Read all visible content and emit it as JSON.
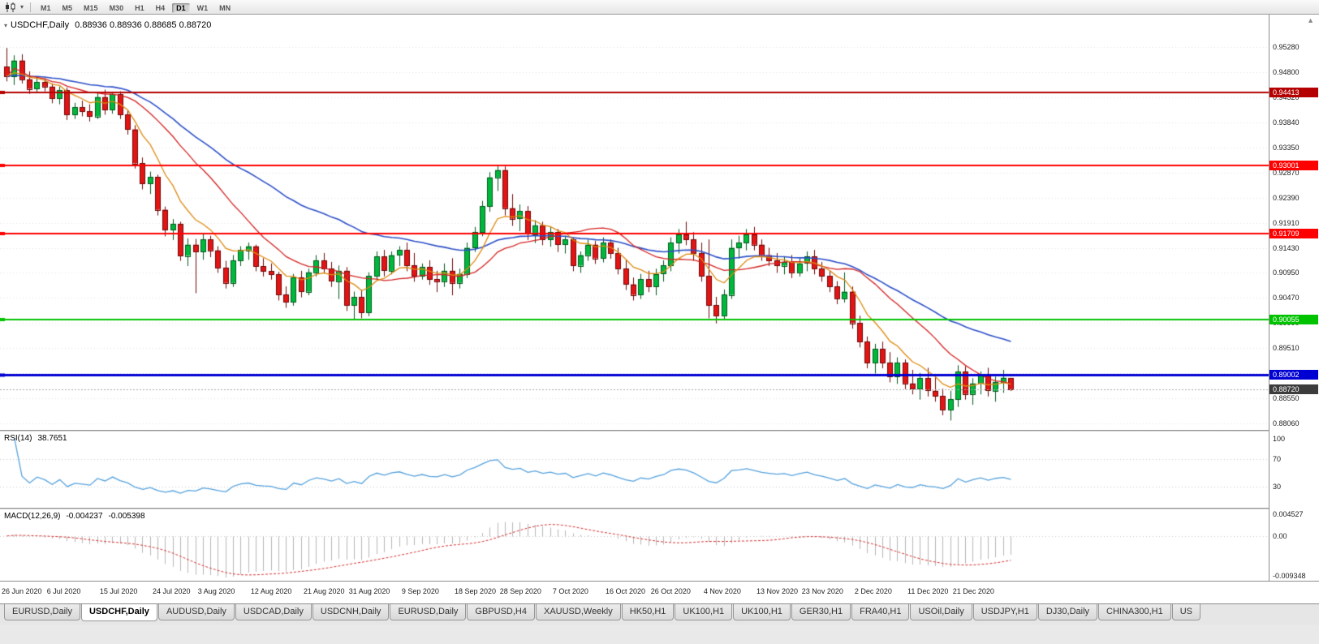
{
  "icons": {
    "dropdown": "▾",
    "scroll_marker": "▲"
  },
  "toolbar": {
    "timeframes": [
      "M1",
      "M5",
      "M15",
      "M30",
      "H1",
      "H4",
      "D1",
      "W1",
      "MN"
    ],
    "active_timeframe": "D1"
  },
  "chart": {
    "symbol_label": "USDCHF,Daily",
    "ohlc": "0.88936 0.88936 0.88685 0.88720"
  },
  "rsi": {
    "label": "RSI(14)",
    "value": "38.7651",
    "levels": [
      100,
      70,
      30
    ],
    "color": "#55a1dc"
  },
  "macd": {
    "label": "MACD(12,26,9)",
    "macd_value": "-0.004237",
    "signal_value": "-0.005398",
    "axis_labels": [
      "0.004527",
      "0.00",
      "-0.009348"
    ],
    "ylim": [
      -0.009348,
      0.004527
    ],
    "hist_color": "#b6b6b6",
    "signal_color": "#d23030"
  },
  "tabs": {
    "items": [
      "EURUSD,Daily",
      "USDCHF,Daily",
      "AUDUSD,Daily",
      "USDCAD,Daily",
      "USDCNH,Daily",
      "EURUSD,Daily",
      "GBPUSD,H4",
      "XAUUSD,Weekly",
      "HK50,H1",
      "UK100,H1",
      "UK100,H1",
      "GER30,H1",
      "FRA40,H1",
      "USOil,Daily",
      "USDJPY,H1",
      "DJ30,Daily",
      "CHINA300,H1",
      "US"
    ],
    "active_index": 1
  },
  "chart_data": {
    "type": "candlestick",
    "symbol": "USDCHF",
    "timeframe": "Daily",
    "ylim": [
      0.8794,
      0.959
    ],
    "y_ticks": [
      "0.95280",
      "0.94800",
      "0.94320",
      "0.93840",
      "0.93350",
      "0.92870",
      "0.92390",
      "0.91910",
      "0.91430",
      "0.90950",
      "0.90470",
      "0.89990",
      "0.89510",
      "0.89030",
      "0.88550",
      "0.88060"
    ],
    "x_tick_labels": [
      {
        "i": 0,
        "t": "26 Jun 2020"
      },
      {
        "i": 6,
        "t": "6 Jul 2020"
      },
      {
        "i": 13,
        "t": "15 Jul 2020"
      },
      {
        "i": 20,
        "t": "24 Jul 2020"
      },
      {
        "i": 26,
        "t": "3 Aug 2020"
      },
      {
        "i": 33,
        "t": "12 Aug 2020"
      },
      {
        "i": 40,
        "t": "21 Aug 2020"
      },
      {
        "i": 46,
        "t": "31 Aug 2020"
      },
      {
        "i": 53,
        "t": "9 Sep 2020"
      },
      {
        "i": 60,
        "t": "18 Sep 2020"
      },
      {
        "i": 66,
        "t": "28 Sep 2020"
      },
      {
        "i": 73,
        "t": "7 Oct 2020"
      },
      {
        "i": 80,
        "t": "16 Oct 2020"
      },
      {
        "i": 86,
        "t": "26 Oct 2020"
      },
      {
        "i": 93,
        "t": "4 Nov 2020"
      },
      {
        "i": 100,
        "t": "13 Nov 2020"
      },
      {
        "i": 106,
        "t": "23 Nov 2020"
      },
      {
        "i": 113,
        "t": "2 Dec 2020"
      },
      {
        "i": 120,
        "t": "11 Dec 2020"
      },
      {
        "i": 126,
        "t": "21 Dec 2020"
      }
    ],
    "colors": {
      "up": "#00b93c",
      "up_edge": "#00591d",
      "down": "#e41414",
      "down_edge": "#6e0808",
      "grid": "#e3e3e3",
      "bid_line": "#a8a8a8"
    },
    "moving_averages": [
      {
        "name": "ma-slow",
        "period": 40,
        "method": "ema",
        "color": "#2c4fc8"
      },
      {
        "name": "ma-mid",
        "period": 18,
        "method": "sma",
        "color": "#d42222"
      },
      {
        "name": "ma-fast",
        "period": 8,
        "method": "ema",
        "color": "#dd8a10"
      }
    ],
    "hlines": [
      {
        "price": 0.94413,
        "label": "0.94413",
        "color": "#b40000",
        "width": 2
      },
      {
        "price": 0.93001,
        "label": "0.93001",
        "color": "#ff0000",
        "width": 2
      },
      {
        "price": 0.91709,
        "label": "0.91709",
        "color": "#ff0000",
        "width": 2
      },
      {
        "price": 0.90055,
        "label": "0.90055",
        "color": "#00c300",
        "width": 2
      },
      {
        "price": 0.89002,
        "label": "0.89002",
        "color": "#0000d2",
        "width": 3
      }
    ],
    "current_price": {
      "value": 0.8872,
      "label": "0.88720",
      "badge_color": "#3c3c3c"
    },
    "candles": [
      [
        0.949,
        0.9526,
        0.9462,
        0.9472
      ],
      [
        0.9472,
        0.9512,
        0.9455,
        0.9502
      ],
      [
        0.9502,
        0.9514,
        0.9458,
        0.9466
      ],
      [
        0.9466,
        0.9481,
        0.9438,
        0.9448
      ],
      [
        0.9448,
        0.9471,
        0.944,
        0.9461
      ],
      [
        0.9461,
        0.9468,
        0.9443,
        0.9452
      ],
      [
        0.9452,
        0.9458,
        0.942,
        0.943
      ],
      [
        0.943,
        0.9452,
        0.9418,
        0.9445
      ],
      [
        0.9445,
        0.945,
        0.9388,
        0.9398
      ],
      [
        0.9398,
        0.9421,
        0.939,
        0.9412
      ],
      [
        0.9412,
        0.9425,
        0.9395,
        0.9405
      ],
      [
        0.9405,
        0.9418,
        0.9385,
        0.9395
      ],
      [
        0.9395,
        0.944,
        0.939,
        0.9432
      ],
      [
        0.9432,
        0.9446,
        0.9398,
        0.9408
      ],
      [
        0.9408,
        0.9442,
        0.94,
        0.9437
      ],
      [
        0.9437,
        0.9443,
        0.939,
        0.9398
      ],
      [
        0.9398,
        0.9408,
        0.936,
        0.937
      ],
      [
        0.937,
        0.9378,
        0.9295,
        0.9305
      ],
      [
        0.9305,
        0.9316,
        0.9255,
        0.9266
      ],
      [
        0.9266,
        0.9289,
        0.9246,
        0.9279
      ],
      [
        0.9279,
        0.9283,
        0.9205,
        0.9216
      ],
      [
        0.9216,
        0.9222,
        0.9165,
        0.9178
      ],
      [
        0.9178,
        0.9198,
        0.9158,
        0.9189
      ],
      [
        0.9189,
        0.9193,
        0.9118,
        0.9128
      ],
      [
        0.9128,
        0.9161,
        0.9108,
        0.9149
      ],
      [
        0.9149,
        0.916,
        0.9056,
        0.9136
      ],
      [
        0.9136,
        0.9171,
        0.912,
        0.9159
      ],
      [
        0.9159,
        0.9166,
        0.9125,
        0.9138
      ],
      [
        0.9138,
        0.9146,
        0.9095,
        0.9105
      ],
      [
        0.9105,
        0.9118,
        0.9065,
        0.9076
      ],
      [
        0.9076,
        0.9129,
        0.9068,
        0.9119
      ],
      [
        0.9119,
        0.9146,
        0.9108,
        0.9139
      ],
      [
        0.9139,
        0.9153,
        0.912,
        0.9146
      ],
      [
        0.9146,
        0.9149,
        0.9098,
        0.9108
      ],
      [
        0.9108,
        0.9123,
        0.9088,
        0.9098
      ],
      [
        0.9098,
        0.9113,
        0.9082,
        0.9092
      ],
      [
        0.9092,
        0.9097,
        0.9042,
        0.9053
      ],
      [
        0.9053,
        0.9069,
        0.9028,
        0.9039
      ],
      [
        0.9039,
        0.9093,
        0.9032,
        0.9086
      ],
      [
        0.9086,
        0.9099,
        0.9048,
        0.9059
      ],
      [
        0.9059,
        0.9103,
        0.9052,
        0.9096
      ],
      [
        0.9096,
        0.9129,
        0.9088,
        0.9119
      ],
      [
        0.9119,
        0.9133,
        0.9095,
        0.9103
      ],
      [
        0.9103,
        0.9116,
        0.9068,
        0.9079
      ],
      [
        0.9079,
        0.9109,
        0.9045,
        0.9099
      ],
      [
        0.9099,
        0.9106,
        0.9022,
        0.9033
      ],
      [
        0.9033,
        0.9059,
        0.9006,
        0.9049
      ],
      [
        0.9049,
        0.9063,
        0.9008,
        0.9019
      ],
      [
        0.9019,
        0.9096,
        0.9012,
        0.9089
      ],
      [
        0.9089,
        0.9136,
        0.9082,
        0.9126
      ],
      [
        0.9126,
        0.9139,
        0.9088,
        0.9099
      ],
      [
        0.9099,
        0.9136,
        0.9092,
        0.9129
      ],
      [
        0.9129,
        0.9146,
        0.9108,
        0.9139
      ],
      [
        0.9139,
        0.9153,
        0.9098,
        0.9109
      ],
      [
        0.9109,
        0.9133,
        0.9078,
        0.9089
      ],
      [
        0.9089,
        0.9113,
        0.9082,
        0.9106
      ],
      [
        0.9106,
        0.9119,
        0.9072,
        0.9083
      ],
      [
        0.9083,
        0.9099,
        0.9058,
        0.9079
      ],
      [
        0.9079,
        0.9113,
        0.9068,
        0.9099
      ],
      [
        0.9099,
        0.9123,
        0.9052,
        0.9076
      ],
      [
        0.9076,
        0.9103,
        0.9065,
        0.9093
      ],
      [
        0.9093,
        0.9153,
        0.9085,
        0.9143
      ],
      [
        0.9143,
        0.9183,
        0.9135,
        0.9173
      ],
      [
        0.9173,
        0.9233,
        0.9165,
        0.9223
      ],
      [
        0.9223,
        0.9288,
        0.9212,
        0.9278
      ],
      [
        0.9278,
        0.9302,
        0.9252,
        0.9292
      ],
      [
        0.9292,
        0.9299,
        0.9205,
        0.9219
      ],
      [
        0.9219,
        0.9246,
        0.9185,
        0.9199
      ],
      [
        0.9199,
        0.9226,
        0.9175,
        0.9213
      ],
      [
        0.9213,
        0.9223,
        0.9158,
        0.9169
      ],
      [
        0.9169,
        0.9196,
        0.9152,
        0.9186
      ],
      [
        0.9186,
        0.9193,
        0.9148,
        0.9159
      ],
      [
        0.9159,
        0.9183,
        0.9145,
        0.9173
      ],
      [
        0.9173,
        0.9179,
        0.9135,
        0.9149
      ],
      [
        0.9149,
        0.9166,
        0.9132,
        0.9159
      ],
      [
        0.9159,
        0.9163,
        0.9098,
        0.9109
      ],
      [
        0.9109,
        0.9136,
        0.9095,
        0.9129
      ],
      [
        0.9129,
        0.9159,
        0.9118,
        0.9149
      ],
      [
        0.9149,
        0.9156,
        0.9112,
        0.9123
      ],
      [
        0.9123,
        0.9163,
        0.9115,
        0.9153
      ],
      [
        0.9153,
        0.9159,
        0.9122,
        0.9133
      ],
      [
        0.9133,
        0.9143,
        0.9092,
        0.9103
      ],
      [
        0.9103,
        0.9119,
        0.9062,
        0.9073
      ],
      [
        0.9073,
        0.9086,
        0.9042,
        0.9053
      ],
      [
        0.9053,
        0.9093,
        0.9045,
        0.9083
      ],
      [
        0.9083,
        0.9099,
        0.9058,
        0.9069
      ],
      [
        0.9069,
        0.9103,
        0.9052,
        0.9093
      ],
      [
        0.9093,
        0.9119,
        0.9078,
        0.9109
      ],
      [
        0.9109,
        0.9163,
        0.9098,
        0.9153
      ],
      [
        0.9153,
        0.9179,
        0.9132,
        0.9169
      ],
      [
        0.9169,
        0.9193,
        0.9148,
        0.9159
      ],
      [
        0.9159,
        0.9173,
        0.9118,
        0.9133
      ],
      [
        0.9133,
        0.9153,
        0.9078,
        0.9089
      ],
      [
        0.9089,
        0.9159,
        0.9008,
        0.9033
      ],
      [
        0.9033,
        0.9049,
        0.8998,
        0.9013
      ],
      [
        0.9013,
        0.9063,
        0.9006,
        0.9053
      ],
      [
        0.9053,
        0.9159,
        0.9045,
        0.9143
      ],
      [
        0.9143,
        0.9166,
        0.9122,
        0.9153
      ],
      [
        0.9153,
        0.9179,
        0.9138,
        0.9169
      ],
      [
        0.9169,
        0.9183,
        0.9138,
        0.9149
      ],
      [
        0.9149,
        0.9159,
        0.9118,
        0.9129
      ],
      [
        0.9129,
        0.9143,
        0.9108,
        0.9119
      ],
      [
        0.9119,
        0.9133,
        0.9095,
        0.9109
      ],
      [
        0.9109,
        0.9126,
        0.9092,
        0.9116
      ],
      [
        0.9116,
        0.9129,
        0.9085,
        0.9096
      ],
      [
        0.9096,
        0.9123,
        0.9088,
        0.9113
      ],
      [
        0.9113,
        0.9136,
        0.9098,
        0.9126
      ],
      [
        0.9126,
        0.9139,
        0.9092,
        0.9103
      ],
      [
        0.9103,
        0.9116,
        0.9078,
        0.9089
      ],
      [
        0.9089,
        0.9099,
        0.9058,
        0.9069
      ],
      [
        0.9069,
        0.9079,
        0.9035,
        0.9046
      ],
      [
        0.9046,
        0.9096,
        0.9038,
        0.9059
      ],
      [
        0.9059,
        0.9069,
        0.8988,
        0.8999
      ],
      [
        0.8999,
        0.9013,
        0.8952,
        0.8963
      ],
      [
        0.8963,
        0.8973,
        0.8912,
        0.8923
      ],
      [
        0.8923,
        0.8959,
        0.8902,
        0.8949
      ],
      [
        0.8949,
        0.8963,
        0.8912,
        0.8923
      ],
      [
        0.8923,
        0.8943,
        0.8885,
        0.8896
      ],
      [
        0.8896,
        0.8933,
        0.8882,
        0.8923
      ],
      [
        0.8923,
        0.8929,
        0.8872,
        0.8883
      ],
      [
        0.8883,
        0.8909,
        0.8862,
        0.8873
      ],
      [
        0.8873,
        0.8903,
        0.8852,
        0.8893
      ],
      [
        0.8893,
        0.8913,
        0.8858,
        0.8869
      ],
      [
        0.8869,
        0.8899,
        0.8848,
        0.8859
      ],
      [
        0.8859,
        0.8873,
        0.8822,
        0.8833
      ],
      [
        0.8833,
        0.8869,
        0.8812,
        0.8853
      ],
      [
        0.8853,
        0.8918,
        0.8838,
        0.8906
      ],
      [
        0.8906,
        0.8916,
        0.8852,
        0.8863
      ],
      [
        0.8863,
        0.8893,
        0.8842,
        0.8883
      ],
      [
        0.8883,
        0.8906,
        0.8862,
        0.8899
      ],
      [
        0.8899,
        0.8913,
        0.8858,
        0.8869
      ],
      [
        0.8869,
        0.8896,
        0.8848,
        0.8886
      ],
      [
        0.8886,
        0.8909,
        0.8865,
        0.8894
      ],
      [
        0.88936,
        0.88936,
        0.88685,
        0.8872
      ]
    ]
  }
}
